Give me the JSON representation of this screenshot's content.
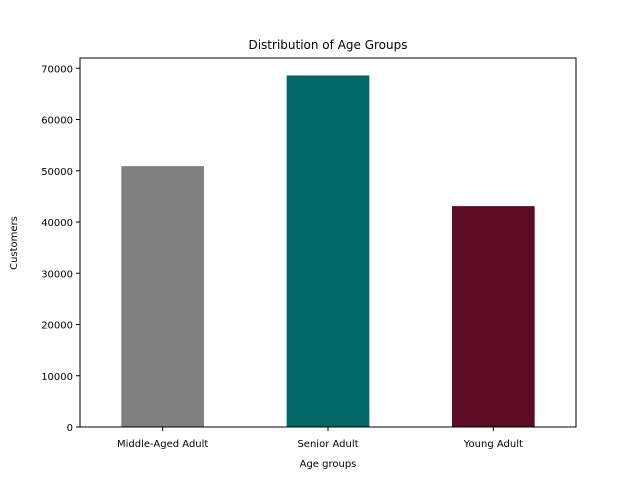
{
  "chart_data": {
    "type": "bar",
    "title": "Distribution of Age Groups",
    "xlabel": "Age groups",
    "ylabel": "Customers",
    "categories": [
      "Middle-Aged Adult",
      "Senior Adult",
      "Young Adult"
    ],
    "values": [
      50900,
      68600,
      43100
    ],
    "colors": [
      "#808080",
      "#036666",
      "#5c0c23"
    ],
    "ylim": [
      0,
      72000
    ],
    "yticks": [
      0,
      10000,
      20000,
      30000,
      40000,
      50000,
      60000,
      70000
    ],
    "grid": false,
    "legend": "none"
  }
}
